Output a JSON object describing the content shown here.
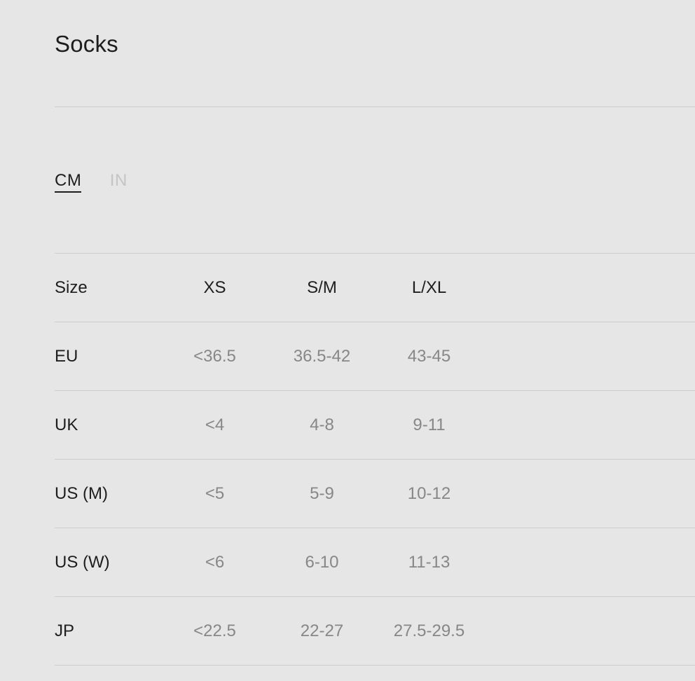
{
  "page": {
    "title": "Socks"
  },
  "unit_toggle": {
    "options": [
      {
        "label": "CM",
        "active": true
      },
      {
        "label": "IN",
        "active": false
      }
    ]
  },
  "size_table": {
    "columns": [
      "Size",
      "XS",
      "S/M",
      "L/XL"
    ],
    "rows": [
      {
        "label": "EU",
        "values": [
          "<36.5",
          "36.5-42",
          "43-45"
        ]
      },
      {
        "label": "UK",
        "values": [
          "<4",
          "4-8",
          "9-11"
        ]
      },
      {
        "label": "US (M)",
        "values": [
          "<5",
          "5-9",
          "10-12"
        ]
      },
      {
        "label": "US (W)",
        "values": [
          "<6",
          "6-10",
          "11-13"
        ]
      },
      {
        "label": "JP",
        "values": [
          "<22.5",
          "22-27",
          "27.5-29.5"
        ]
      }
    ]
  },
  "colors": {
    "background": "#e6e6e6",
    "divider": "#cdcdcd",
    "text_primary": "#1e1e1e",
    "text_value": "#878787",
    "text_inactive": "#c5c5c5"
  }
}
